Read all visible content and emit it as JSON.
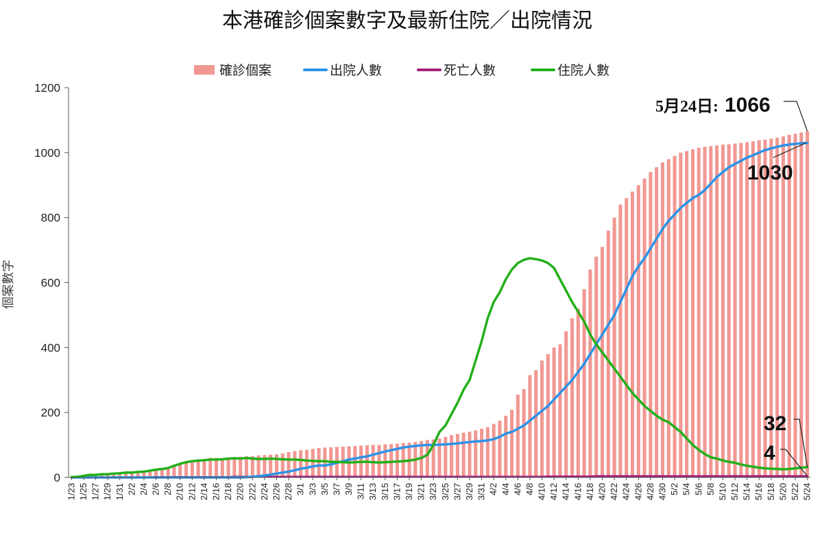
{
  "chart_data": {
    "type": "bar",
    "title": "本港確診個案數字及最新住院／出院情況",
    "ylabel": "個案數字",
    "xlabel": "",
    "ylim": [
      0,
      1200
    ],
    "yticks": [
      0,
      200,
      400,
      600,
      800,
      1000,
      1200
    ],
    "grid": false,
    "legend_position": "top",
    "colors": {
      "confirmed": "#f19893",
      "discharged": "#2c93e8",
      "deaths": "#a2227a",
      "hospitalised": "#22b01a"
    },
    "legend": [
      {
        "key": "confirmed",
        "label": "確診個案",
        "kind": "bar"
      },
      {
        "key": "discharged",
        "label": "出院人數",
        "kind": "line"
      },
      {
        "key": "deaths",
        "label": "死亡人數",
        "kind": "line"
      },
      {
        "key": "hospitalised",
        "label": "住院人數",
        "kind": "line"
      }
    ],
    "x_labels": [
      "1/23",
      "1/25",
      "1/27",
      "1/29",
      "1/31",
      "2/2",
      "2/4",
      "2/6",
      "2/8",
      "2/10",
      "2/12",
      "2/14",
      "2/16",
      "2/18",
      "2/20",
      "2/22",
      "2/24",
      "2/26",
      "2/28",
      "3/1",
      "3/3",
      "3/5",
      "3/7",
      "3/9",
      "3/11",
      "3/13",
      "3/15",
      "3/17",
      "3/19",
      "3/21",
      "3/23",
      "3/25",
      "3/27",
      "3/29",
      "3/31",
      "4/2",
      "4/4",
      "4/6",
      "4/8",
      "4/10",
      "4/12",
      "4/14",
      "4/16",
      "4/18",
      "4/20",
      "4/22",
      "4/24",
      "4/26",
      "4/28",
      "4/30",
      "5/2",
      "5/4",
      "5/6",
      "5/8",
      "5/10",
      "5/12",
      "5/14",
      "5/16",
      "5/18",
      "5/20",
      "5/22",
      "5/24"
    ],
    "series": [
      {
        "key": "confirmed",
        "name": "確診個案",
        "type": "bar",
        "values": [
          1,
          2,
          5,
          8,
          8,
          10,
          10,
          12,
          13,
          15,
          15,
          17,
          18,
          21,
          24,
          26,
          29,
          36,
          42,
          49,
          53,
          56,
          57,
          60,
          60,
          60,
          62,
          63,
          64,
          65,
          66,
          68,
          69,
          70,
          71,
          74,
          78,
          81,
          84,
          85,
          88,
          91,
          92,
          93,
          94,
          95,
          96,
          97,
          98,
          99,
          100,
          100,
          102,
          103,
          104,
          106,
          107,
          109,
          112,
          115,
          117,
          120,
          125,
          130,
          134,
          138,
          141,
          145,
          150,
          155,
          165,
          175,
          190,
          208,
          255,
          272,
          315,
          330,
          360,
          380,
          400,
          410,
          450,
          490,
          520,
          580,
          640,
          680,
          710,
          760,
          800,
          840,
          860,
          880,
          900,
          920,
          940,
          955,
          970,
          980,
          990,
          1000,
          1005,
          1010,
          1015,
          1018,
          1020,
          1022,
          1025,
          1026,
          1028,
          1030,
          1032,
          1035,
          1038,
          1040,
          1043,
          1046,
          1050,
          1055,
          1058,
          1062,
          1066
        ]
      },
      {
        "key": "discharged",
        "name": "出院人數",
        "type": "line",
        "values": [
          0,
          0,
          0,
          0,
          0,
          0,
          0,
          0,
          0,
          0,
          0,
          0,
          0,
          0,
          0,
          0,
          0,
          0,
          0,
          0,
          0,
          0,
          0,
          0,
          0,
          0,
          0,
          0,
          0,
          1,
          2,
          4,
          6,
          9,
          12,
          15,
          18,
          22,
          27,
          30,
          34,
          37,
          37,
          40,
          45,
          50,
          55,
          58,
          62,
          65,
          70,
          75,
          80,
          84,
          88,
          92,
          95,
          97,
          99,
          100,
          100,
          101,
          102,
          103,
          105,
          107,
          109,
          111,
          112,
          114,
          118,
          125,
          135,
          140,
          150,
          160,
          175,
          190,
          205,
          220,
          240,
          260,
          280,
          300,
          325,
          350,
          380,
          410,
          440,
          470,
          500,
          540,
          580,
          620,
          650,
          675,
          705,
          735,
          765,
          790,
          810,
          830,
          845,
          860,
          870,
          885,
          905,
          925,
          940,
          955,
          965,
          975,
          985,
          992,
          1000,
          1008,
          1013,
          1018,
          1022,
          1025,
          1027,
          1029,
          1030
        ]
      },
      {
        "key": "deaths",
        "name": "死亡人數",
        "type": "line",
        "values": [
          0,
          0,
          0,
          0,
          0,
          0,
          0,
          0,
          0,
          0,
          0,
          0,
          0,
          0,
          1,
          1,
          1,
          1,
          1,
          1,
          1,
          1,
          1,
          1,
          1,
          1,
          1,
          2,
          2,
          2,
          2,
          2,
          2,
          2,
          2,
          2,
          2,
          2,
          2,
          2,
          2,
          2,
          2,
          2,
          2,
          2,
          2,
          2,
          2,
          2,
          2,
          2,
          2,
          2,
          2,
          2,
          2,
          2,
          2,
          2,
          2,
          2,
          2,
          2,
          2,
          2,
          2,
          2,
          2,
          2,
          2,
          2,
          2,
          2,
          2,
          2,
          2,
          2,
          2,
          3,
          3,
          3,
          3,
          3,
          3,
          3,
          3,
          4,
          4,
          4,
          4,
          4,
          4,
          4,
          4,
          4,
          4,
          4,
          4,
          4,
          4,
          4,
          4,
          4,
          4,
          4,
          4,
          4,
          4,
          4,
          4,
          4,
          4,
          4,
          4,
          4,
          4,
          4,
          4,
          4,
          4,
          4,
          4
        ]
      },
      {
        "key": "hospitalised",
        "name": "住院人數",
        "type": "line",
        "values": [
          1,
          2,
          5,
          8,
          8,
          10,
          10,
          12,
          13,
          15,
          15,
          17,
          18,
          21,
          24,
          26,
          29,
          36,
          42,
          47,
          50,
          52,
          53,
          55,
          55,
          56,
          58,
          59,
          58,
          60,
          58,
          57,
          57,
          58,
          57,
          56,
          55,
          55,
          54,
          52,
          51,
          50,
          50,
          48,
          48,
          47,
          46,
          47,
          48,
          48,
          47,
          46,
          47,
          48,
          49,
          50,
          52,
          55,
          60,
          70,
          100,
          140,
          160,
          195,
          230,
          270,
          300,
          360,
          420,
          490,
          540,
          570,
          610,
          640,
          660,
          670,
          675,
          672,
          668,
          660,
          645,
          610,
          575,
          540,
          510,
          480,
          440,
          410,
          385,
          360,
          335,
          310,
          285,
          260,
          240,
          220,
          205,
          190,
          178,
          170,
          155,
          140,
          120,
          100,
          85,
          72,
          62,
          58,
          52,
          48,
          45,
          40,
          36,
          33,
          30,
          28,
          27,
          26,
          25,
          26,
          28,
          30,
          32
        ]
      }
    ],
    "annotations": {
      "date_label": "5月24日:",
      "confirmed_total": "1066",
      "discharged_total": "1030",
      "hospitalised_total": "32",
      "deaths_total": "4"
    }
  }
}
